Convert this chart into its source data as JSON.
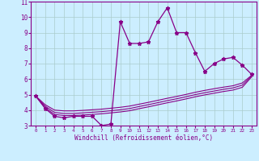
{
  "xlabel": "Windchill (Refroidissement éolien,°C)",
  "background_color": "#cceeff",
  "grid_color": "#aacccc",
  "line_color": "#880088",
  "xlim": [
    -0.5,
    23.5
  ],
  "ylim": [
    3,
    11
  ],
  "xticks": [
    0,
    1,
    2,
    3,
    4,
    5,
    6,
    7,
    8,
    9,
    10,
    11,
    12,
    13,
    14,
    15,
    16,
    17,
    18,
    19,
    20,
    21,
    22,
    23
  ],
  "yticks": [
    3,
    4,
    5,
    6,
    7,
    8,
    9,
    10,
    11
  ],
  "main_x": [
    0,
    1,
    2,
    3,
    4,
    5,
    6,
    7,
    8,
    9,
    10,
    11,
    12,
    13,
    14,
    15,
    16,
    17,
    18,
    19,
    20,
    21,
    22,
    23
  ],
  "main_y": [
    4.9,
    4.1,
    3.6,
    3.5,
    3.6,
    3.6,
    3.6,
    3.0,
    3.1,
    9.7,
    8.3,
    8.3,
    8.4,
    9.7,
    10.6,
    9.0,
    9.0,
    7.7,
    6.5,
    7.0,
    7.3,
    7.4,
    6.9,
    6.3
  ],
  "line1_x": [
    0,
    1,
    2,
    3,
    4,
    5,
    6,
    7,
    8,
    9,
    10,
    11,
    12,
    13,
    14,
    15,
    16,
    17,
    18,
    19,
    20,
    21,
    22,
    23
  ],
  "line1_y": [
    4.9,
    4.35,
    4.0,
    3.95,
    3.95,
    3.98,
    4.02,
    4.06,
    4.12,
    4.18,
    4.26,
    4.38,
    4.5,
    4.63,
    4.76,
    4.88,
    5.01,
    5.15,
    5.27,
    5.38,
    5.48,
    5.57,
    5.75,
    6.25
  ],
  "line2_x": [
    0,
    1,
    2,
    3,
    4,
    5,
    6,
    7,
    8,
    9,
    10,
    11,
    12,
    13,
    14,
    15,
    16,
    17,
    18,
    19,
    20,
    21,
    22,
    23
  ],
  "line2_y": [
    4.9,
    4.25,
    3.85,
    3.78,
    3.78,
    3.82,
    3.86,
    3.9,
    3.96,
    4.02,
    4.1,
    4.23,
    4.35,
    4.48,
    4.61,
    4.73,
    4.86,
    5.0,
    5.12,
    5.23,
    5.34,
    5.43,
    5.61,
    6.2
  ],
  "line3_x": [
    0,
    1,
    2,
    3,
    4,
    5,
    6,
    7,
    8,
    9,
    10,
    11,
    12,
    13,
    14,
    15,
    16,
    17,
    18,
    19,
    20,
    21,
    22,
    23
  ],
  "line3_y": [
    4.9,
    4.15,
    3.72,
    3.65,
    3.65,
    3.68,
    3.72,
    3.76,
    3.82,
    3.88,
    3.96,
    4.09,
    4.21,
    4.34,
    4.47,
    4.59,
    4.72,
    4.86,
    4.98,
    5.09,
    5.2,
    5.29,
    5.47,
    6.15
  ]
}
